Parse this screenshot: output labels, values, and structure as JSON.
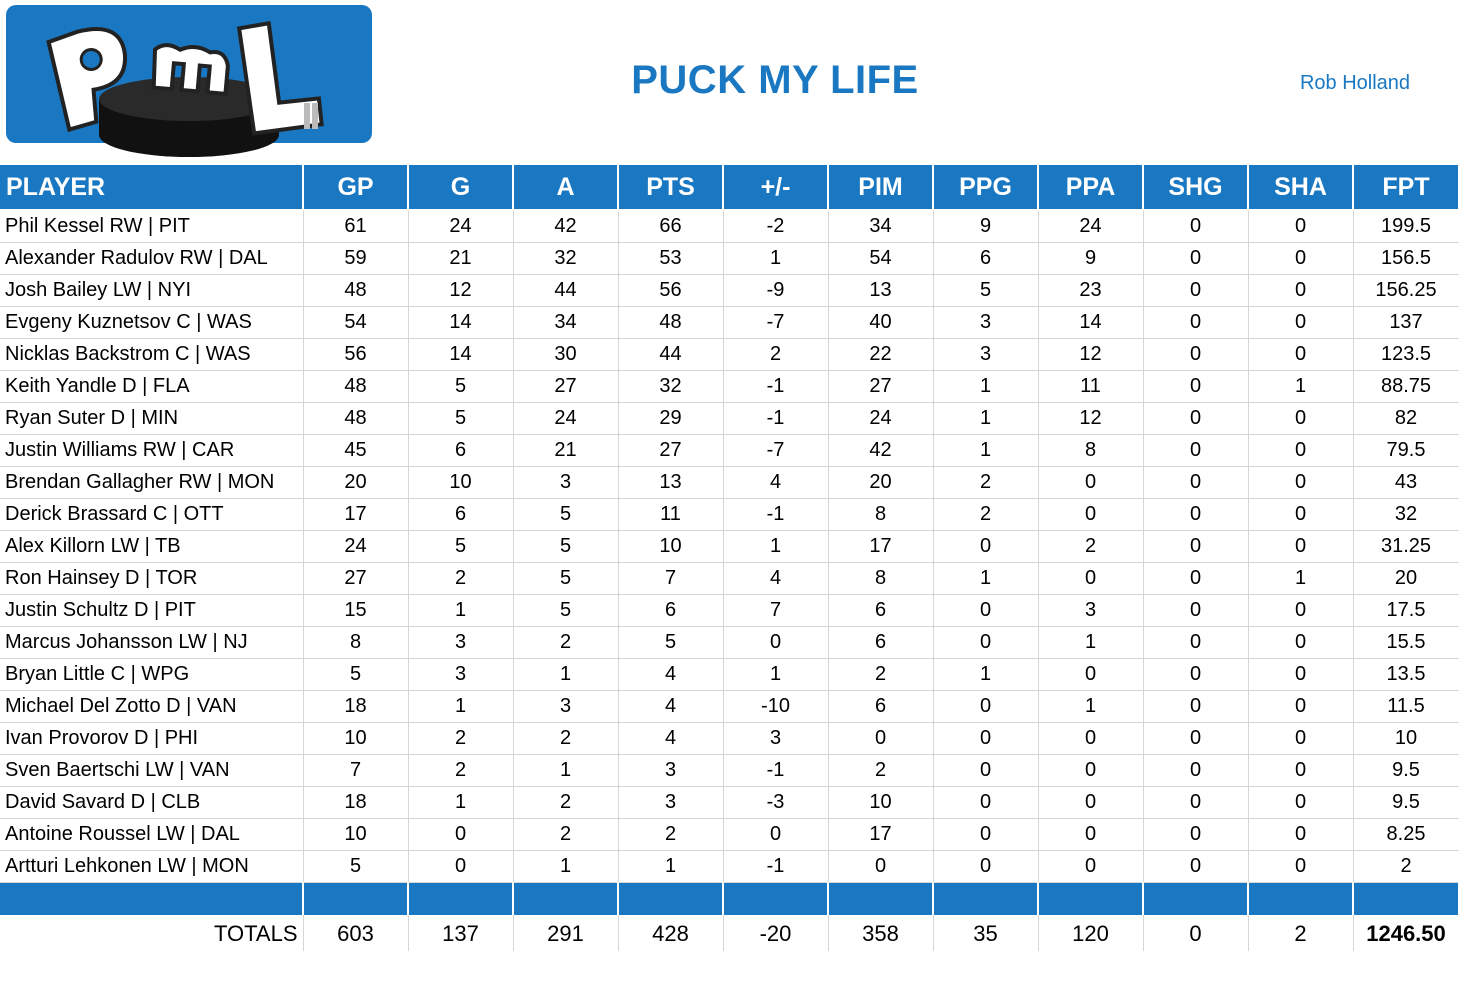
{
  "header": {
    "logo_text": "PML",
    "title": "PUCK MY LIFE",
    "owner": "Rob Holland"
  },
  "columns": [
    "PLAYER",
    "GP",
    "G",
    "A",
    "PTS",
    "+/-",
    "PIM",
    "PPG",
    "PPA",
    "SHG",
    "SHA",
    "FPT"
  ],
  "rows": [
    [
      "Phil Kessel RW | PIT",
      "61",
      "24",
      "42",
      "66",
      "-2",
      "34",
      "9",
      "24",
      "0",
      "0",
      "199.5"
    ],
    [
      "Alexander Radulov RW | DAL",
      "59",
      "21",
      "32",
      "53",
      "1",
      "54",
      "6",
      "9",
      "0",
      "0",
      "156.5"
    ],
    [
      "Josh Bailey LW | NYI",
      "48",
      "12",
      "44",
      "56",
      "-9",
      "13",
      "5",
      "23",
      "0",
      "0",
      "156.25"
    ],
    [
      "Evgeny Kuznetsov C | WAS",
      "54",
      "14",
      "34",
      "48",
      "-7",
      "40",
      "3",
      "14",
      "0",
      "0",
      "137"
    ],
    [
      "Nicklas Backstrom C | WAS",
      "56",
      "14",
      "30",
      "44",
      "2",
      "22",
      "3",
      "12",
      "0",
      "0",
      "123.5"
    ],
    [
      "Keith Yandle D | FLA",
      "48",
      "5",
      "27",
      "32",
      "-1",
      "27",
      "1",
      "11",
      "0",
      "1",
      "88.75"
    ],
    [
      "Ryan Suter D | MIN",
      "48",
      "5",
      "24",
      "29",
      "-1",
      "24",
      "1",
      "12",
      "0",
      "0",
      "82"
    ],
    [
      "Justin Williams RW | CAR",
      "45",
      "6",
      "21",
      "27",
      "-7",
      "42",
      "1",
      "8",
      "0",
      "0",
      "79.5"
    ],
    [
      "Brendan Gallagher RW | MON",
      "20",
      "10",
      "3",
      "13",
      "4",
      "20",
      "2",
      "0",
      "0",
      "0",
      "43"
    ],
    [
      "Derick Brassard C | OTT",
      "17",
      "6",
      "5",
      "11",
      "-1",
      "8",
      "2",
      "0",
      "0",
      "0",
      "32"
    ],
    [
      "Alex Killorn LW | TB",
      "24",
      "5",
      "5",
      "10",
      "1",
      "17",
      "0",
      "2",
      "0",
      "0",
      "31.25"
    ],
    [
      "Ron Hainsey D | TOR",
      "27",
      "2",
      "5",
      "7",
      "4",
      "8",
      "1",
      "0",
      "0",
      "1",
      "20"
    ],
    [
      "Justin Schultz D | PIT",
      "15",
      "1",
      "5",
      "6",
      "7",
      "6",
      "0",
      "3",
      "0",
      "0",
      "17.5"
    ],
    [
      "Marcus Johansson LW | NJ",
      "8",
      "3",
      "2",
      "5",
      "0",
      "6",
      "0",
      "1",
      "0",
      "0",
      "15.5"
    ],
    [
      "Bryan Little C | WPG",
      "5",
      "3",
      "1",
      "4",
      "1",
      "2",
      "1",
      "0",
      "0",
      "0",
      "13.5"
    ],
    [
      "Michael Del Zotto D | VAN",
      "18",
      "1",
      "3",
      "4",
      "-10",
      "6",
      "0",
      "1",
      "0",
      "0",
      "11.5"
    ],
    [
      "Ivan Provorov D | PHI",
      "10",
      "2",
      "2",
      "4",
      "3",
      "0",
      "0",
      "0",
      "0",
      "0",
      "10"
    ],
    [
      "Sven Baertschi LW | VAN",
      "7",
      "2",
      "1",
      "3",
      "-1",
      "2",
      "0",
      "0",
      "0",
      "0",
      "9.5"
    ],
    [
      "David Savard D | CLB",
      "18",
      "1",
      "2",
      "3",
      "-3",
      "10",
      "0",
      "0",
      "0",
      "0",
      "9.5"
    ],
    [
      "Antoine Roussel LW | DAL",
      "10",
      "0",
      "2",
      "2",
      "0",
      "17",
      "0",
      "0",
      "0",
      "0",
      "8.25"
    ],
    [
      "Artturi Lehkonen LW | MON",
      "5",
      "0",
      "1",
      "1",
      "-1",
      "0",
      "0",
      "0",
      "0",
      "0",
      "2"
    ]
  ],
  "totals": [
    "TOTALS",
    "603",
    "137",
    "291",
    "428",
    "-20",
    "358",
    "35",
    "120",
    "0",
    "2",
    "1246.50"
  ],
  "colors": {
    "accent": "#1a78c2",
    "puck": "#111111",
    "logo_bg": "#1a78c2"
  }
}
